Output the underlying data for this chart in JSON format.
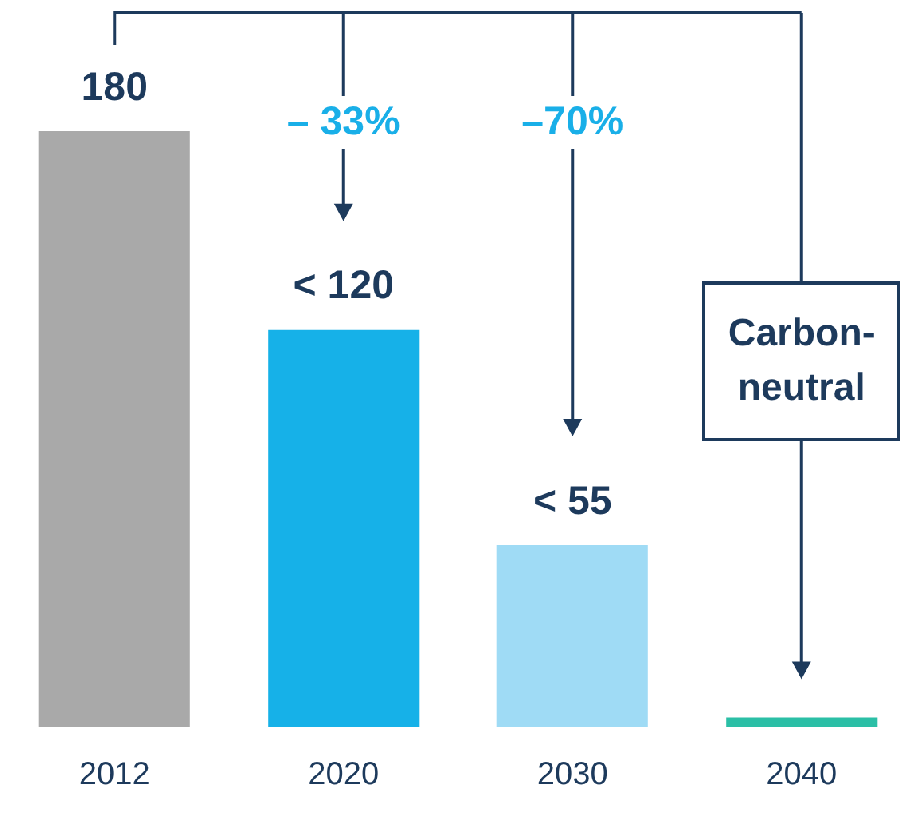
{
  "chart_data": {
    "type": "bar",
    "categories": [
      "2012",
      "2020",
      "2030",
      "2040"
    ],
    "values": [
      180,
      120,
      55,
      3
    ],
    "colors": [
      "#a9a9a9",
      "#16b1e8",
      "#9fdbf5",
      "#2bbfa6"
    ],
    "value_labels": [
      "180",
      "< 120",
      "< 55",
      null
    ],
    "annotations": [
      "– 33%",
      "–70%",
      "Carbon-neutral"
    ]
  }
}
